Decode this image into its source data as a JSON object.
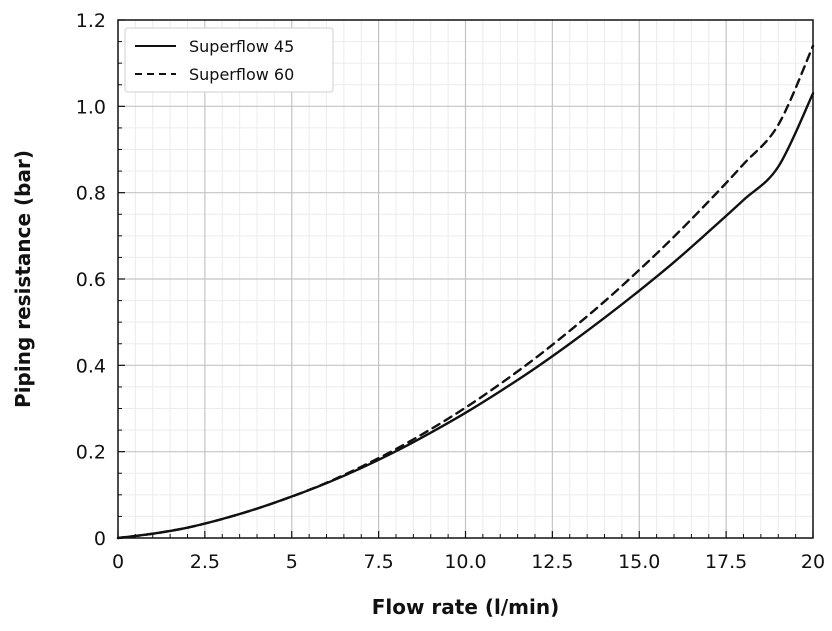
{
  "chart_data": {
    "type": "line",
    "xlabel": "Flow rate (l/min)",
    "ylabel": "Piping resistance (bar)",
    "xlim": [
      0,
      20
    ],
    "ylim": [
      0,
      1.2
    ],
    "x_ticks": [
      0,
      2.5,
      5,
      7.5,
      10,
      12.5,
      15,
      17.5,
      20
    ],
    "x_tick_labels": [
      "0",
      "2.5",
      "5",
      "7.5",
      "10.0",
      "12.5",
      "15.0",
      "17.5",
      "20"
    ],
    "y_ticks": [
      0,
      0.2,
      0.4,
      0.6,
      0.8,
      1.0,
      1.2
    ],
    "y_tick_labels": [
      "0",
      "0.2",
      "0.4",
      "0.6",
      "0.8",
      "1.0",
      "1.2"
    ],
    "grid": true,
    "minor_grid": true,
    "legend_position": "top-left",
    "x": [
      0,
      1,
      2,
      3,
      4,
      5,
      6,
      7,
      8,
      9,
      10,
      11,
      12,
      13,
      14,
      15,
      16,
      17,
      18,
      19,
      20
    ],
    "series": [
      {
        "name": "Superflow 45",
        "style": "solid",
        "color": "#111111",
        "values": [
          0,
          0.01,
          0.024,
          0.044,
          0.068,
          0.096,
          0.127,
          0.162,
          0.201,
          0.244,
          0.29,
          0.34,
          0.393,
          0.45,
          0.51,
          0.573,
          0.639,
          0.71,
          0.783,
          0.86,
          1.03
        ]
      },
      {
        "name": "Superflow 60",
        "style": "dashed",
        "color": "#111111",
        "values": [
          0,
          0.01,
          0.024,
          0.044,
          0.068,
          0.096,
          0.128,
          0.165,
          0.206,
          0.252,
          0.302,
          0.357,
          0.416,
          0.48,
          0.548,
          0.621,
          0.698,
          0.78,
          0.866,
          0.957,
          1.14
        ]
      }
    ]
  }
}
